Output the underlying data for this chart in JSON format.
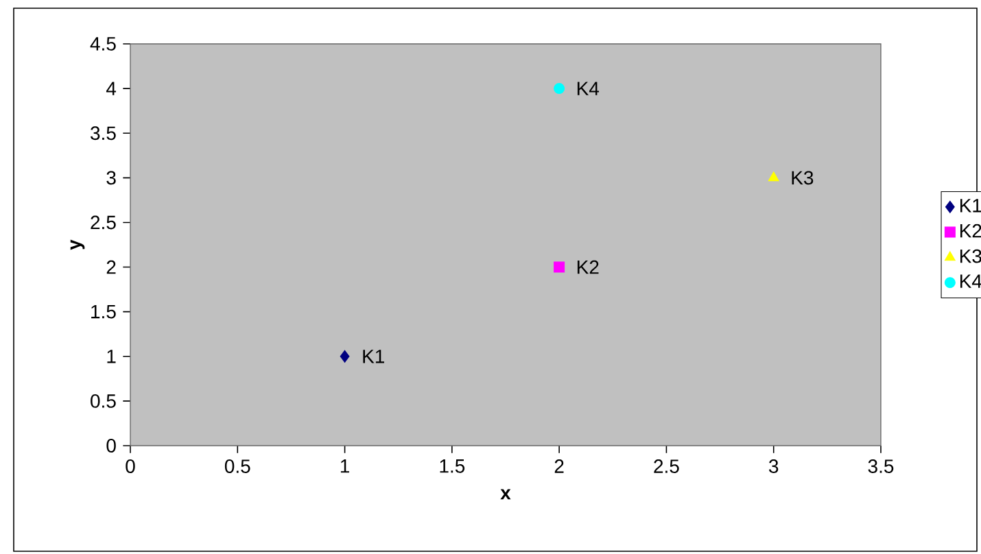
{
  "chart_data": {
    "type": "scatter",
    "xlabel": "x",
    "ylabel": "y",
    "xlim": [
      0,
      3.5
    ],
    "xticks": [
      0,
      0.5,
      1,
      1.5,
      2,
      2.5,
      3,
      3.5
    ],
    "ylim": [
      0,
      4.5
    ],
    "yticks": [
      0,
      0.5,
      1,
      1.5,
      2,
      2.5,
      3,
      3.5,
      4,
      4.5
    ],
    "legend": "right",
    "series": [
      {
        "name": "K1",
        "color": "#000080",
        "marker": "diamond",
        "x": [
          1
        ],
        "values": [
          1
        ]
      },
      {
        "name": "K2",
        "color": "#ff00ff",
        "marker": "square",
        "x": [
          2
        ],
        "values": [
          2
        ]
      },
      {
        "name": "K3",
        "color": "#ffff00",
        "marker": "triangle",
        "x": [
          3
        ],
        "values": [
          3
        ]
      },
      {
        "name": "K4",
        "color": "#00ffff",
        "marker": "circle",
        "x": [
          2
        ],
        "values": [
          4
        ]
      }
    ]
  }
}
